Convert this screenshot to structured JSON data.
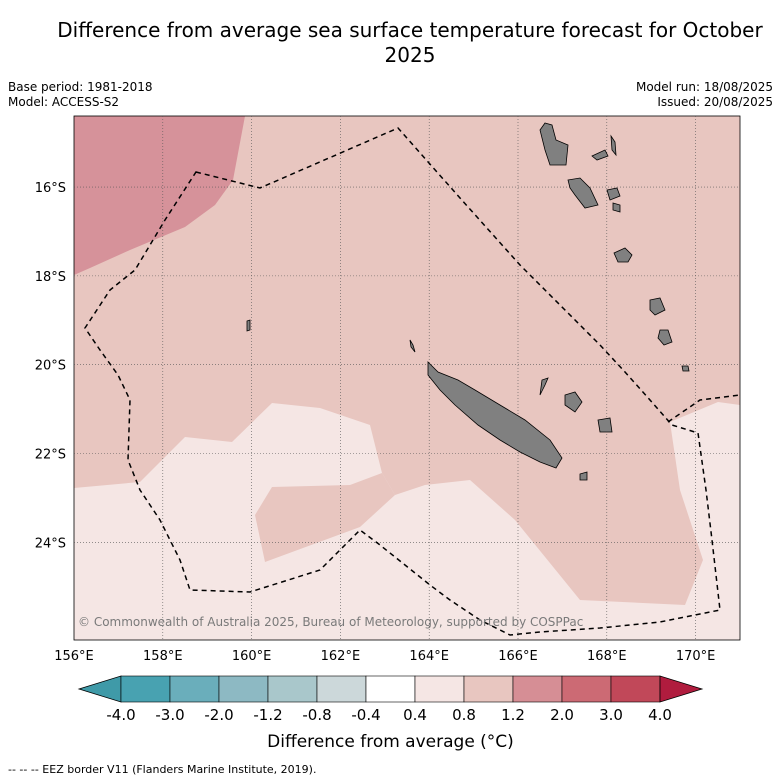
{
  "title": "Difference from average sea surface temperature forecast for October 2025",
  "meta_left": {
    "base_period": "Base period: 1981-2018",
    "model": "Model: ACCESS-S2"
  },
  "meta_right": {
    "model_run": "Model run: 18/08/2025",
    "issued": "Issued: 20/08/2025"
  },
  "copyright": "© Commonwealth of Australia 2025, Bureau of Meteorology, supported by COSPPac",
  "map": {
    "lon_range": [
      156,
      171
    ],
    "lat_range": [
      -26.2,
      -14.4
    ],
    "lon_ticks": [
      "156°E",
      "158°E",
      "160°E",
      "162°E",
      "164°E",
      "166°E",
      "168°E",
      "170°E"
    ],
    "lat_ticks": [
      "16°S",
      "18°S",
      "20°S",
      "22°S",
      "24°S"
    ]
  },
  "colorbar": {
    "ticks": [
      "-4.0",
      "-3.0",
      "-2.0",
      "-1.2",
      "-0.8",
      "-0.4",
      "0.4",
      "0.8",
      "1.2",
      "2.0",
      "3.0",
      "4.0"
    ],
    "colors": [
      "#3f9aa8",
      "#48a2b1",
      "#6aaebb",
      "#8db9c3",
      "#a9c7cb",
      "#ccd8da",
      "#ffffff",
      "#f5e6e4",
      "#e8c6c0",
      "#d68e95",
      "#cc6a74",
      "#c14859",
      "#b01c3e"
    ],
    "label": "Difference from average (°C)"
  },
  "footer": "-- -- -- EEZ border V11 (Flanders Marine Institute, 2019)."
}
